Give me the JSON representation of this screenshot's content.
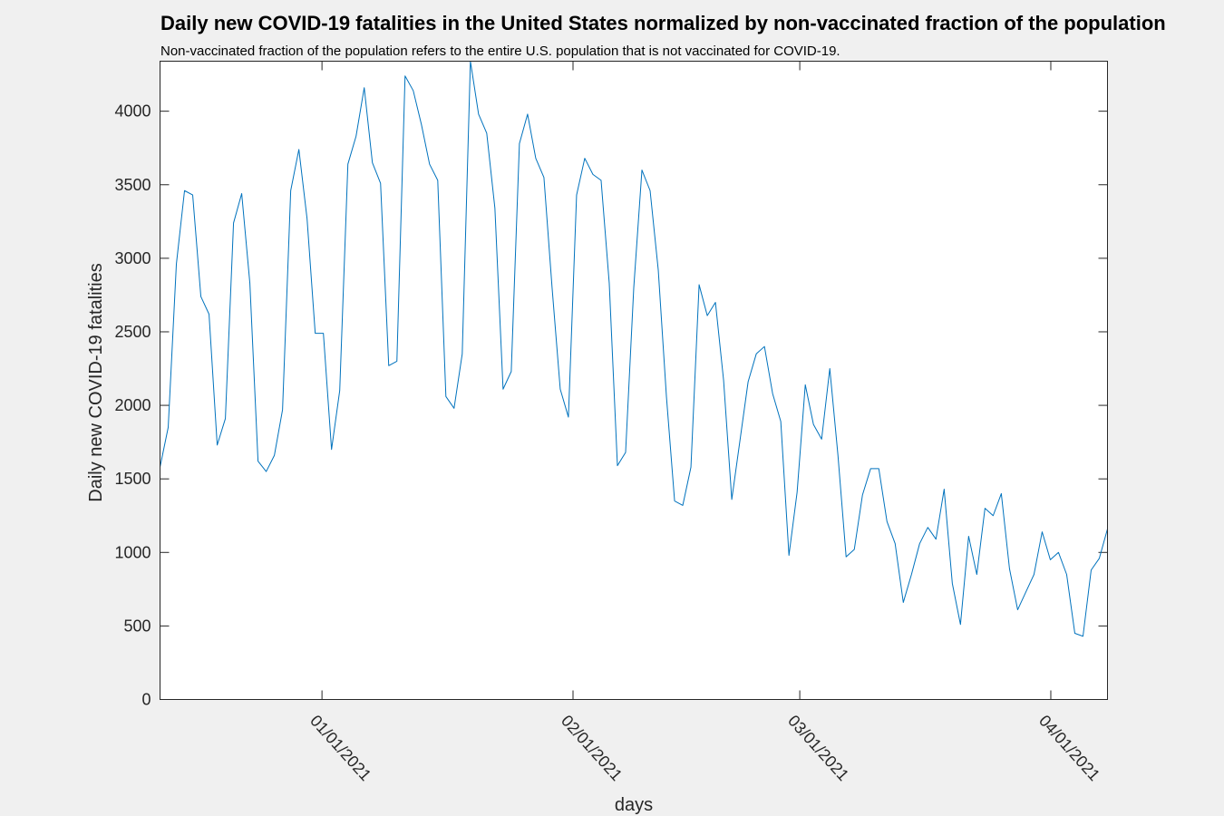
{
  "chart_data": {
    "type": "line",
    "title": "Daily new COVID-19 fatalities in the United States normalized by non-vaccinated fraction of the population",
    "subtitle": "Non-vaccinated fraction of the population refers to the entire U.S. population that is not vaccinated for COVID-19.",
    "xlabel": "days",
    "ylabel": "Daily new COVID-19 fatalities",
    "x_start": "12/12/2020",
    "x_end": "04/08/2021",
    "ylim": [
      0,
      4340
    ],
    "yticks": [
      0,
      500,
      1000,
      1500,
      2000,
      2500,
      3000,
      3500,
      4000
    ],
    "xticks": [
      {
        "label": "01/01/2021"
      },
      {
        "label": "02/01/2021"
      },
      {
        "label": "03/01/2021"
      },
      {
        "label": "04/01/2021"
      }
    ],
    "grid": false,
    "line_color": "#0072bd",
    "series": [
      {
        "values": [
          1580,
          1850,
          2960,
          3460,
          3430,
          2740,
          2620,
          1730,
          1910,
          3240,
          3440,
          2830,
          1620,
          1550,
          1660,
          1970,
          3460,
          3740,
          3270,
          2490,
          2490,
          1700,
          2100,
          3640,
          3830,
          4160,
          3650,
          3510,
          2270,
          2300,
          4240,
          4140,
          3910,
          3640,
          3530,
          2060,
          1980,
          2350,
          4340,
          3980,
          3850,
          3340,
          2110,
          2230,
          3780,
          3980,
          3680,
          3550,
          2800,
          2110,
          1920,
          3430,
          3680,
          3570,
          3530,
          2830,
          1590,
          1680,
          2800,
          3600,
          3460,
          2920,
          2060,
          1350,
          1320,
          1580,
          2820,
          2610,
          2700,
          2170,
          1360,
          1760,
          2160,
          2350,
          2400,
          2080,
          1890,
          980,
          1410,
          2140,
          1870,
          1770,
          2250,
          1660,
          970,
          1020,
          1390,
          1570,
          1570,
          1210,
          1060,
          660,
          850,
          1060,
          1170,
          1090,
          1430,
          790,
          510,
          1110,
          850,
          1300,
          1250,
          1400,
          890,
          610,
          730,
          850,
          1140,
          950,
          1000,
          850,
          450,
          430,
          880,
          960,
          1160
        ]
      }
    ]
  }
}
